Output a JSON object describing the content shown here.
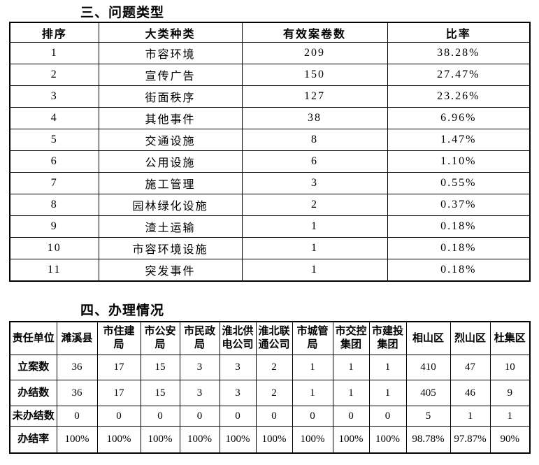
{
  "section1": {
    "title": "三、问题类型",
    "table": {
      "headers": [
        "排序",
        "大类种类",
        "有效案卷数",
        "比率"
      ],
      "rows": [
        [
          "1",
          "市容环境",
          "209",
          "38.28%"
        ],
        [
          "2",
          "宣传广告",
          "150",
          "27.47%"
        ],
        [
          "3",
          "街面秩序",
          "127",
          "23.26%"
        ],
        [
          "4",
          "其他事件",
          "38",
          "6.96%"
        ],
        [
          "5",
          "交通设施",
          "8",
          "1.47%"
        ],
        [
          "6",
          "公用设施",
          "6",
          "1.10%"
        ],
        [
          "7",
          "施工管理",
          "3",
          "0.55%"
        ],
        [
          "8",
          "园林绿化设施",
          "2",
          "0.37%"
        ],
        [
          "9",
          "渣土运输",
          "1",
          "0.18%"
        ],
        [
          "10",
          "市容环境设施",
          "1",
          "0.18%"
        ],
        [
          "11",
          "突发事件",
          "1",
          "0.18%"
        ]
      ]
    }
  },
  "section2": {
    "title": "四、办理情况",
    "table": {
      "corner_header": "责任单位",
      "unit_headers": [
        "濉溪县",
        "市住建局",
        "市公安局",
        "市民政局",
        "淮北供电公司",
        "淮北联通公司",
        "市城管局",
        "市交控集团",
        "市建投集团",
        "相山区",
        "烈山区",
        "杜集区"
      ],
      "rows": [
        {
          "label": "立案数",
          "values": [
            "36",
            "17",
            "15",
            "3",
            "3",
            "2",
            "1",
            "1",
            "1",
            "410",
            "47",
            "10"
          ]
        },
        {
          "label": "办结数",
          "values": [
            "36",
            "17",
            "15",
            "3",
            "3",
            "2",
            "1",
            "1",
            "1",
            "405",
            "46",
            "9"
          ]
        },
        {
          "label": "未办结数",
          "values": [
            "0",
            "0",
            "0",
            "0",
            "0",
            "0",
            "0",
            "0",
            "0",
            "5",
            "1",
            "1"
          ]
        },
        {
          "label": "办结率",
          "values": [
            "100%",
            "100%",
            "100%",
            "100%",
            "100%",
            "100%",
            "100%",
            "100%",
            "100%",
            "98.78%",
            "97.87%",
            "90%"
          ]
        }
      ]
    }
  },
  "colors": {
    "text": "#000000",
    "border": "#000000",
    "background": "#ffffff"
  }
}
